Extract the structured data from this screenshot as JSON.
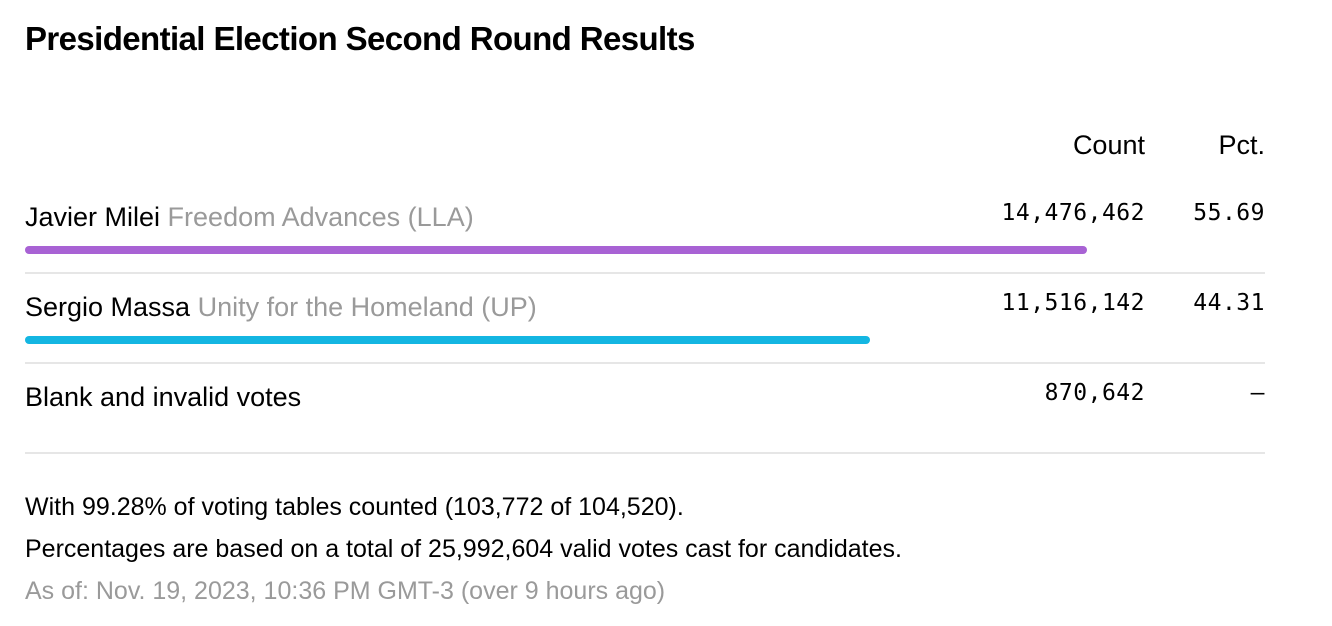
{
  "title": "Presidential Election Second Round Results",
  "columns": {
    "count": "Count",
    "pct": "Pct."
  },
  "rows": [
    {
      "name": "Javier Milei",
      "party": "Freedom Advances (LLA)",
      "count": "14,476,462",
      "pct": "55.69",
      "share_pct": 55.69,
      "color": "#a862d4"
    },
    {
      "name": "Sergio Massa",
      "party": "Unity for the Homeland (UP)",
      "count": "11,516,142",
      "pct": "44.31",
      "share_pct": 44.31,
      "color": "#14b6e2"
    },
    {
      "name": "Blank and invalid votes",
      "party": "",
      "count": "870,642",
      "pct": "–"
    }
  ],
  "footnotes": {
    "tables": "With 99.28% of voting tables counted (103,772 of 104,520).",
    "basis": "Percentages are based on a total of 25,992,604 valid votes cast for candidates.",
    "as_of": "As of: Nov. 19, 2023, 10:36 PM GMT-3 (over 9 hours ago)"
  }
}
